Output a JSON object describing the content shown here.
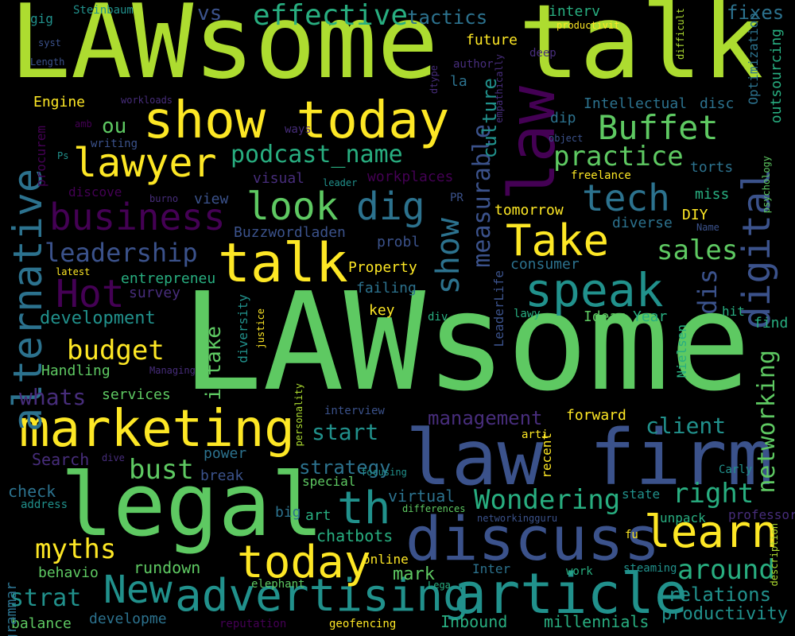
{
  "title": "",
  "palette": {
    "background": "#000000",
    "dark_purple": "#440154",
    "purple": "#472d7b",
    "indigo": "#3b528b",
    "blue": "#2c728e",
    "teal": "#21918c",
    "green_teal": "#28ae80",
    "green": "#5ec962",
    "lime": "#addc30",
    "yellow": "#fde725"
  },
  "words": [
    {
      "text": "LAWsome"
    },
    {
      "text": "talk"
    },
    {
      "text": "LAWsome"
    },
    {
      "text": "law firm"
    },
    {
      "text": "legal"
    },
    {
      "text": "discuss"
    },
    {
      "text": "article"
    },
    {
      "text": "marketing"
    },
    {
      "text": "show today"
    },
    {
      "text": "talk"
    },
    {
      "text": "law"
    },
    {
      "text": "learn"
    },
    {
      "text": "speak"
    },
    {
      "text": "advertising"
    },
    {
      "text": "today"
    },
    {
      "text": "th"
    },
    {
      "text": "Take"
    },
    {
      "text": "lawyer"
    },
    {
      "text": "business"
    },
    {
      "text": "Buffet"
    },
    {
      "text": "look"
    },
    {
      "text": "dig"
    },
    {
      "text": "tech"
    },
    {
      "text": "Hot"
    },
    {
      "text": "digital"
    },
    {
      "text": "alternative"
    },
    {
      "text": "show"
    },
    {
      "text": "New"
    },
    {
      "text": "effective"
    },
    {
      "text": "podcast_name"
    },
    {
      "text": "practice"
    },
    {
      "text": "leadership"
    },
    {
      "text": "Wondering"
    },
    {
      "text": "around"
    },
    {
      "text": "right"
    },
    {
      "text": "budget"
    },
    {
      "text": "myths"
    },
    {
      "text": "bust"
    },
    {
      "text": "sales"
    },
    {
      "text": "start"
    },
    {
      "text": "client"
    },
    {
      "text": "networking"
    },
    {
      "text": "measurable"
    },
    {
      "text": "management"
    },
    {
      "text": "whats"
    },
    {
      "text": "strat"
    },
    {
      "text": "strategy"
    },
    {
      "text": "relations"
    },
    {
      "text": "productivity"
    },
    {
      "text": "development"
    },
    {
      "text": "intake"
    },
    {
      "text": "dis"
    },
    {
      "text": "tactics"
    },
    {
      "text": "vs"
    },
    {
      "text": "ou"
    },
    {
      "text": "fixes"
    },
    {
      "text": "culture"
    },
    {
      "text": "mark"
    },
    {
      "text": "Inbound"
    },
    {
      "text": "millennials"
    },
    {
      "text": "rundown"
    },
    {
      "text": "chatbots"
    },
    {
      "text": "virtual"
    },
    {
      "text": "Handling"
    },
    {
      "text": "services"
    },
    {
      "text": "power"
    },
    {
      "text": "break"
    },
    {
      "text": "Search"
    },
    {
      "text": "check"
    },
    {
      "text": "balance"
    },
    {
      "text": "developme"
    },
    {
      "text": "behavio"
    },
    {
      "text": "grammar"
    },
    {
      "text": "entrepreneu"
    },
    {
      "text": "survey"
    },
    {
      "text": "Buzzwordladen"
    },
    {
      "text": "probl"
    },
    {
      "text": "Property"
    },
    {
      "text": "failing"
    },
    {
      "text": "key"
    },
    {
      "text": "consumer"
    },
    {
      "text": "Nielsen"
    },
    {
      "text": "Ideas"
    },
    {
      "text": "Year"
    },
    {
      "text": "DIY"
    },
    {
      "text": "miss"
    },
    {
      "text": "diverse"
    },
    {
      "text": "torts"
    },
    {
      "text": "tomorrow"
    },
    {
      "text": "Intellectual"
    },
    {
      "text": "disc"
    },
    {
      "text": "Optimization"
    },
    {
      "text": "outsourcing"
    },
    {
      "text": "psychology"
    },
    {
      "text": "interv"
    },
    {
      "text": "future"
    },
    {
      "text": "dip"
    },
    {
      "text": "Engine"
    },
    {
      "text": "forward"
    },
    {
      "text": "recent"
    },
    {
      "text": "state"
    },
    {
      "text": "Inter"
    },
    {
      "text": "work"
    },
    {
      "text": "online"
    },
    {
      "text": "elephant"
    },
    {
      "text": "steaming"
    },
    {
      "text": "geofencing"
    },
    {
      "text": "reputation"
    },
    {
      "text": "big"
    },
    {
      "text": "art"
    },
    {
      "text": "diversity"
    },
    {
      "text": "find"
    },
    {
      "text": "hit"
    },
    {
      "text": "div"
    },
    {
      "text": "lawy"
    },
    {
      "text": "LeaderLife"
    },
    {
      "text": "workplaces"
    },
    {
      "text": "visual"
    },
    {
      "text": "view"
    },
    {
      "text": "discove"
    },
    {
      "text": "procurem"
    },
    {
      "text": "writing"
    },
    {
      "text": "latest"
    },
    {
      "text": "la"
    },
    {
      "text": "author"
    },
    {
      "text": "deep"
    },
    {
      "text": "productivit"
    },
    {
      "text": "difficult"
    },
    {
      "text": "Steinbaum"
    },
    {
      "text": "gig"
    },
    {
      "text": "syst"
    },
    {
      "text": "Length"
    },
    {
      "text": "workloads"
    },
    {
      "text": "amb"
    },
    {
      "text": "Ps"
    },
    {
      "text": "ways"
    },
    {
      "text": "dtype"
    },
    {
      "text": "empathically"
    },
    {
      "text": "object"
    },
    {
      "text": "freelance"
    },
    {
      "text": "leader"
    },
    {
      "text": "burno"
    },
    {
      "text": "PR"
    },
    {
      "text": "Name"
    },
    {
      "text": "Managing"
    },
    {
      "text": "justice"
    },
    {
      "text": "personality"
    },
    {
      "text": "interview"
    },
    {
      "text": "arti"
    },
    {
      "text": "Carly"
    },
    {
      "text": "dive"
    },
    {
      "text": "focusing"
    },
    {
      "text": "special"
    },
    {
      "text": "address"
    },
    {
      "text": "differences"
    },
    {
      "text": "networkingguru"
    },
    {
      "text": "unpack"
    },
    {
      "text": "professor"
    },
    {
      "text": "fu"
    },
    {
      "text": "description"
    },
    {
      "text": "Lega"
    }
  ]
}
